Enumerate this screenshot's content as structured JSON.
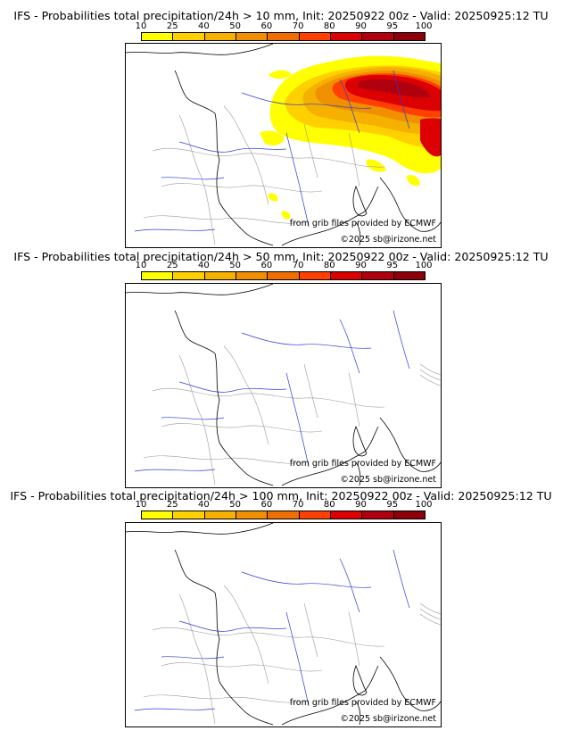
{
  "scale": {
    "ticks": [
      "10",
      "25",
      "40",
      "50",
      "60",
      "70",
      "80",
      "90",
      "95",
      "100"
    ],
    "colors": [
      "#ffff00",
      "#ffd000",
      "#f5b000",
      "#f09000",
      "#ee6f00",
      "#ff4000",
      "#dd0000",
      "#b00010",
      "#8c000a"
    ]
  },
  "panels": [
    {
      "title": "IFS - Probabilities total precipitation/24h > 10 mm, Init: 20250922 00z - Valid: 20250925:12 TU",
      "credit_source": "from grib files provided by ECMWF",
      "credit_copyright": "©2025 sb@irizone.net"
    },
    {
      "title": "IFS - Probabilities total precipitation/24h > 50 mm, Init: 20250922 00z - Valid: 20250925:12 TU",
      "credit_source": "from grib files provided by ECMWF",
      "credit_copyright": "©2025 sb@irizone.net"
    },
    {
      "title": "IFS - Probabilities total precipitation/24h > 100 mm, Init: 20250922 00z - Valid: 20250925:12 TU",
      "credit_source": "from grib files provided by ECMWF",
      "credit_copyright": "©2025 sb@irizone.net"
    }
  ]
}
